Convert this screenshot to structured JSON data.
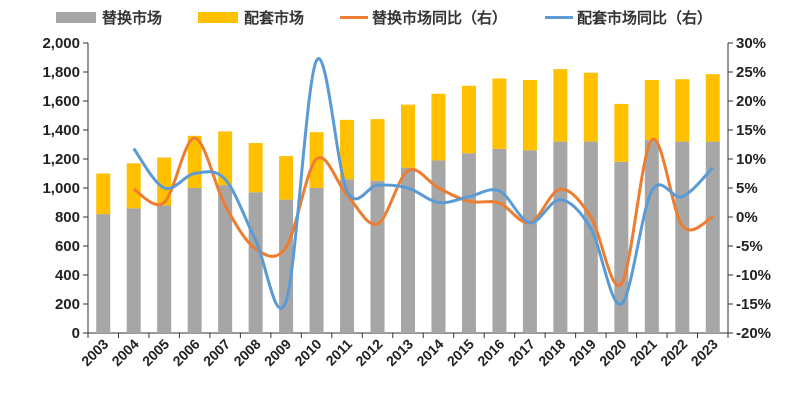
{
  "chart_data": {
    "type": "bar",
    "categories": [
      "2003",
      "2004",
      "2005",
      "2006",
      "2007",
      "2008",
      "2009",
      "2010",
      "2011",
      "2012",
      "2013",
      "2014",
      "2015",
      "2016",
      "2017",
      "2018",
      "2019",
      "2020",
      "2021",
      "2022",
      "2023"
    ],
    "series": [
      {
        "name": "替换市场",
        "type": "bar",
        "stack": "total",
        "axis": "left",
        "color": "#a6a6a6",
        "values": [
          820,
          860,
          880,
          1000,
          1020,
          970,
          920,
          1000,
          1060,
          1050,
          1140,
          1190,
          1240,
          1270,
          1260,
          1320,
          1320,
          1180,
          1330,
          1320,
          1320
        ]
      },
      {
        "name": "配套市场",
        "type": "bar",
        "stack": "total",
        "axis": "left",
        "color": "#ffc000",
        "values": [
          280,
          310,
          330,
          360,
          370,
          340,
          300,
          385,
          410,
          425,
          435,
          460,
          465,
          485,
          485,
          500,
          475,
          400,
          415,
          430,
          465
        ]
      },
      {
        "name": "替换市场同比（右）",
        "type": "line",
        "axis": "right",
        "color": "#ed7d31",
        "values": [
          null,
          4.8,
          2.5,
          13.6,
          2,
          -5.5,
          -5.2,
          10,
          3.8,
          -1.2,
          8,
          5,
          2.7,
          2.4,
          -1,
          4.8,
          0,
          -11.5,
          13.3,
          -1.5,
          0
        ]
      },
      {
        "name": "配套市场同比（右）",
        "type": "line",
        "axis": "right",
        "color": "#5b9bd5",
        "values": [
          null,
          11.8,
          5,
          7.5,
          6.5,
          -4,
          -14.5,
          27,
          4.5,
          5.5,
          5,
          2.5,
          3.5,
          4.5,
          -1,
          3,
          -2,
          -15,
          4.5,
          3.5,
          8.5
        ]
      }
    ],
    "y_left": {
      "min": 0,
      "max": 2000,
      "step": 200,
      "tick_labels": [
        "0",
        "200",
        "400",
        "600",
        "800",
        "1,000",
        "1,200",
        "1,400",
        "1,600",
        "1,800",
        "2,000"
      ]
    },
    "y_right": {
      "min": -20,
      "max": 30,
      "step": 5,
      "tick_labels": [
        "-20%",
        "-15%",
        "-10%",
        "-5%",
        "0%",
        "5%",
        "10%",
        "15%",
        "20%",
        "25%",
        "30%"
      ]
    },
    "legend_position": "top",
    "grid": false,
    "title": "",
    "xlabel": "",
    "ylabel": ""
  }
}
